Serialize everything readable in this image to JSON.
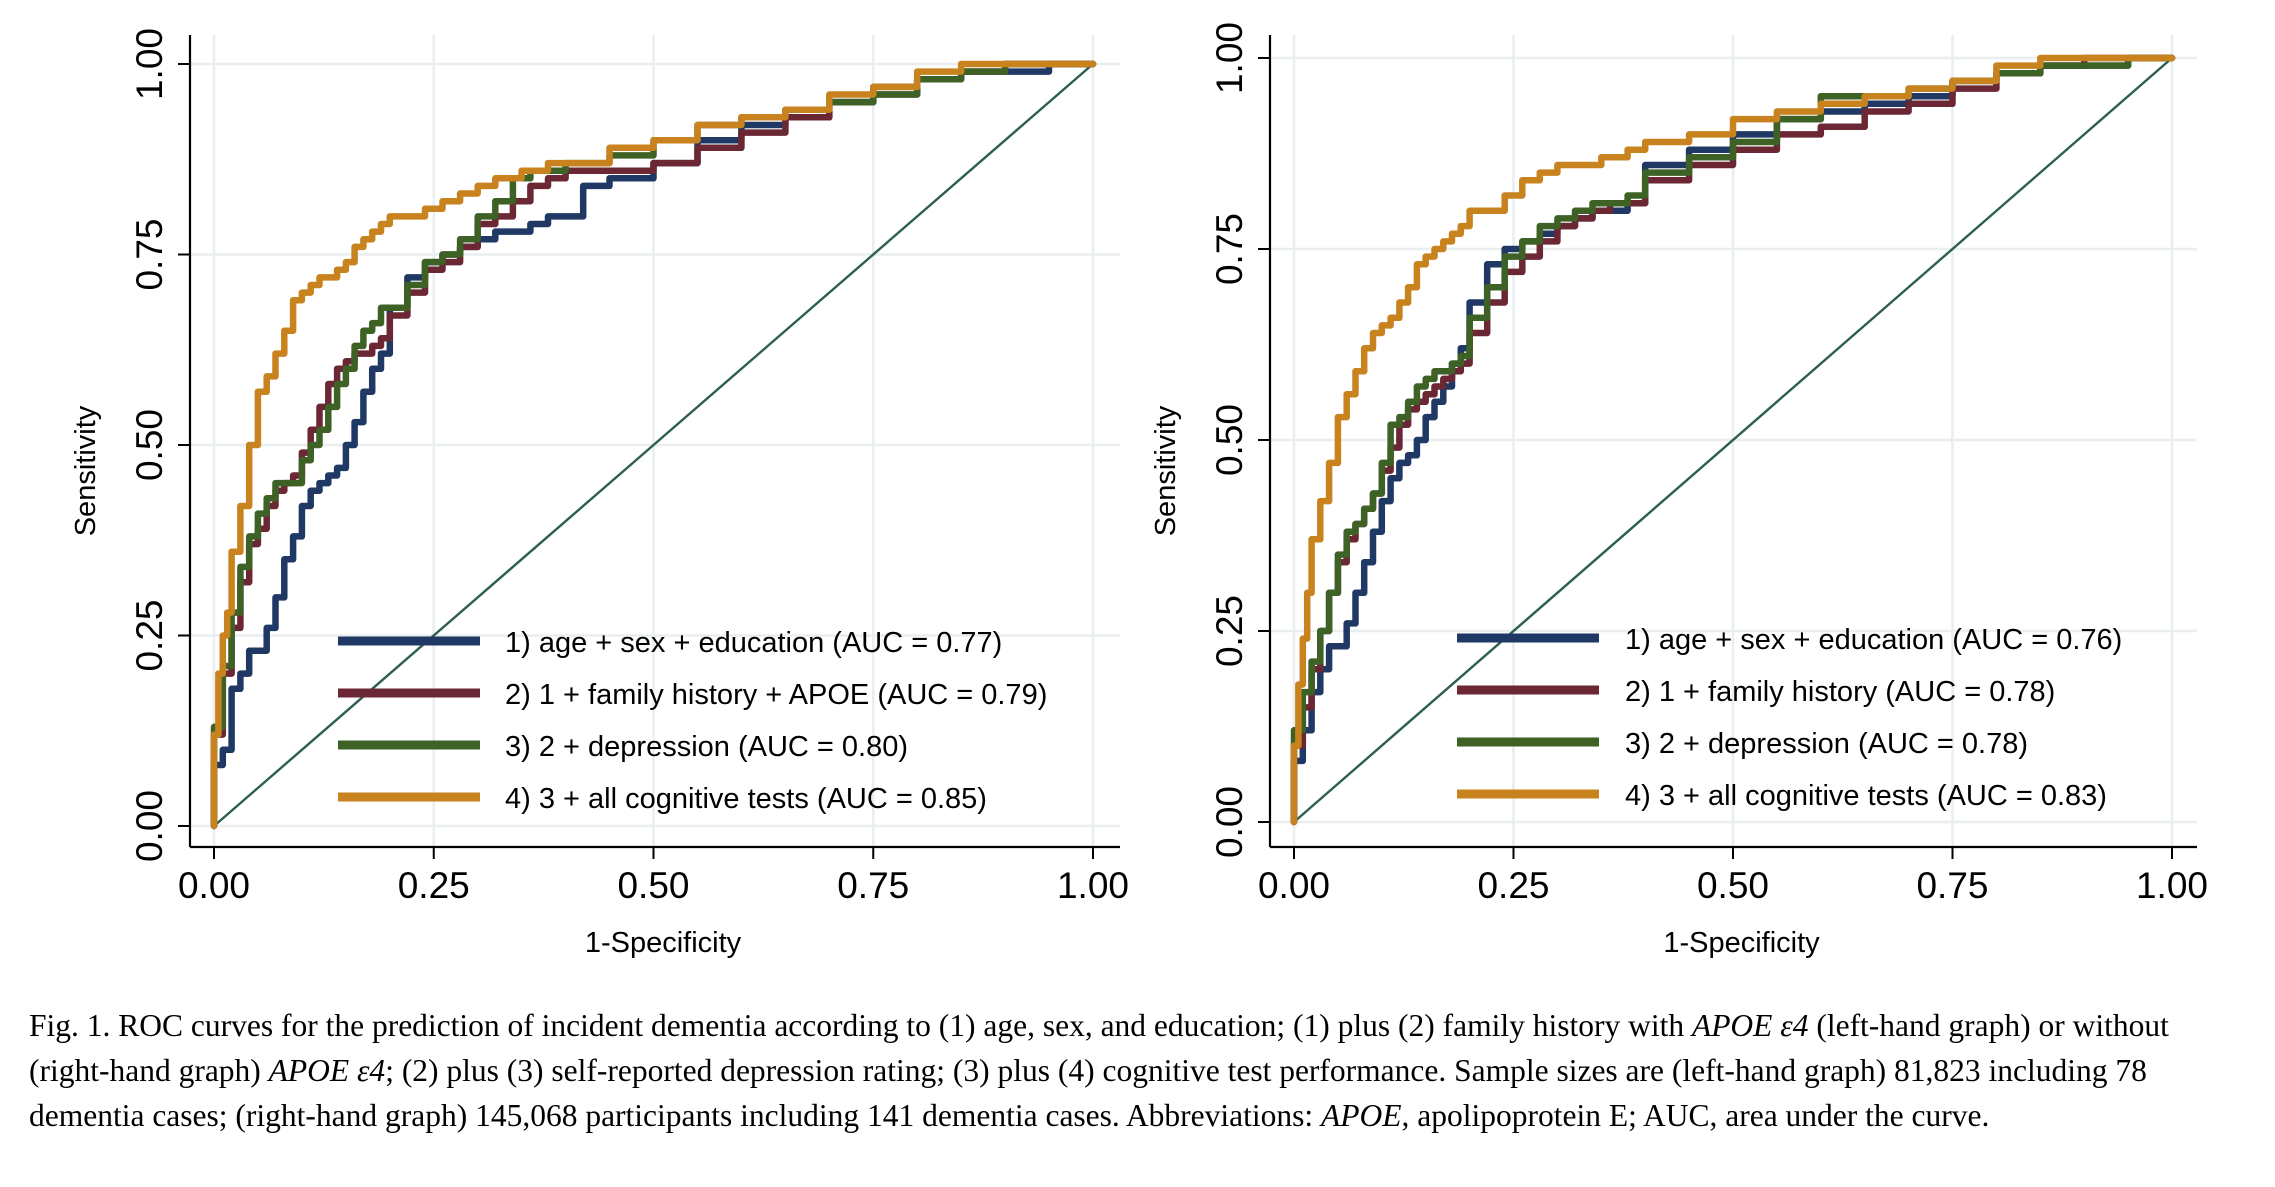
{
  "chart_data": [
    {
      "type": "line",
      "xlabel": "1-Specificity",
      "ylabel": "Sensitivity",
      "xlim": [
        0,
        1
      ],
      "ylim": [
        0,
        1
      ],
      "xticks": [
        "0.00",
        "0.25",
        "0.50",
        "0.75",
        "1.00"
      ],
      "yticks": [
        "0.00",
        "0.25",
        "0.50",
        "0.75",
        "1.00"
      ],
      "grid": true,
      "legend_position": "bottom-right",
      "reference_line": {
        "x": [
          0,
          1
        ],
        "y": [
          0,
          1
        ],
        "color": "#2d5f4f"
      },
      "series": [
        {
          "name": "1) age + sex + education (AUC = 0.77)",
          "color": "#1f3864",
          "x": [
            0,
            0.01,
            0.02,
            0.03,
            0.04,
            0.05,
            0.06,
            0.07,
            0.08,
            0.09,
            0.1,
            0.11,
            0.12,
            0.13,
            0.14,
            0.15,
            0.16,
            0.17,
            0.18,
            0.19,
            0.2,
            0.22,
            0.24,
            0.26,
            0.28,
            0.3,
            0.32,
            0.34,
            0.36,
            0.38,
            0.4,
            0.42,
            0.45,
            0.5,
            0.55,
            0.6,
            0.65,
            0.7,
            0.75,
            0.8,
            0.85,
            0.9,
            0.95,
            1.0
          ],
          "y": [
            0,
            0.08,
            0.1,
            0.18,
            0.2,
            0.23,
            0.23,
            0.26,
            0.3,
            0.35,
            0.38,
            0.42,
            0.44,
            0.45,
            0.46,
            0.47,
            0.5,
            0.53,
            0.57,
            0.6,
            0.62,
            0.68,
            0.72,
            0.74,
            0.75,
            0.76,
            0.77,
            0.78,
            0.78,
            0.79,
            0.8,
            0.8,
            0.84,
            0.85,
            0.87,
            0.9,
            0.92,
            0.93,
            0.95,
            0.97,
            0.98,
            0.99,
            0.99,
            1.0
          ]
        },
        {
          "name": "2) 1 + family history + APOE (AUC = 0.79)",
          "color": "#6b2734",
          "x": [
            0,
            0.01,
            0.02,
            0.03,
            0.04,
            0.05,
            0.06,
            0.07,
            0.08,
            0.09,
            0.1,
            0.11,
            0.12,
            0.13,
            0.14,
            0.15,
            0.16,
            0.17,
            0.18,
            0.19,
            0.2,
            0.22,
            0.24,
            0.26,
            0.28,
            0.3,
            0.32,
            0.34,
            0.36,
            0.38,
            0.4,
            0.45,
            0.5,
            0.55,
            0.6,
            0.65,
            0.7,
            0.75,
            0.8,
            0.85,
            0.9,
            0.95,
            1.0
          ],
          "y": [
            0,
            0.12,
            0.2,
            0.26,
            0.32,
            0.37,
            0.39,
            0.42,
            0.44,
            0.45,
            0.46,
            0.49,
            0.52,
            0.55,
            0.58,
            0.6,
            0.61,
            0.62,
            0.62,
            0.63,
            0.64,
            0.67,
            0.7,
            0.73,
            0.74,
            0.76,
            0.79,
            0.8,
            0.82,
            0.84,
            0.85,
            0.86,
            0.86,
            0.87,
            0.89,
            0.91,
            0.93,
            0.95,
            0.96,
            0.98,
            0.99,
            1.0,
            1.0
          ]
        },
        {
          "name": "3) 2 + depression (AUC = 0.80)",
          "color": "#3e6226",
          "x": [
            0,
            0.01,
            0.02,
            0.03,
            0.04,
            0.05,
            0.06,
            0.07,
            0.08,
            0.09,
            0.1,
            0.11,
            0.12,
            0.13,
            0.14,
            0.15,
            0.16,
            0.17,
            0.18,
            0.19,
            0.2,
            0.22,
            0.24,
            0.26,
            0.28,
            0.3,
            0.32,
            0.34,
            0.36,
            0.38,
            0.4,
            0.45,
            0.5,
            0.55,
            0.6,
            0.65,
            0.7,
            0.75,
            0.8,
            0.85,
            0.9,
            0.95,
            1.0
          ],
          "y": [
            0,
            0.13,
            0.21,
            0.28,
            0.34,
            0.38,
            0.41,
            0.43,
            0.45,
            0.45,
            0.45,
            0.48,
            0.5,
            0.52,
            0.55,
            0.58,
            0.6,
            0.63,
            0.65,
            0.66,
            0.68,
            0.68,
            0.71,
            0.74,
            0.75,
            0.77,
            0.8,
            0.82,
            0.85,
            0.86,
            0.86,
            0.87,
            0.88,
            0.9,
            0.92,
            0.93,
            0.94,
            0.95,
            0.96,
            0.98,
            0.99,
            1.0,
            1.0
          ]
        },
        {
          "name": "4) 3 + all cognitive tests (AUC = 0.85)",
          "color": "#c8821e",
          "x": [
            0,
            0.005,
            0.01,
            0.015,
            0.02,
            0.03,
            0.04,
            0.05,
            0.06,
            0.07,
            0.08,
            0.09,
            0.1,
            0.11,
            0.12,
            0.13,
            0.14,
            0.15,
            0.16,
            0.17,
            0.18,
            0.19,
            0.2,
            0.22,
            0.24,
            0.26,
            0.28,
            0.3,
            0.32,
            0.35,
            0.38,
            0.4,
            0.45,
            0.5,
            0.55,
            0.6,
            0.65,
            0.7,
            0.75,
            0.8,
            0.85,
            0.9,
            0.95,
            1.0
          ],
          "y": [
            0,
            0.12,
            0.2,
            0.25,
            0.28,
            0.36,
            0.42,
            0.5,
            0.57,
            0.59,
            0.62,
            0.65,
            0.69,
            0.7,
            0.71,
            0.72,
            0.72,
            0.73,
            0.74,
            0.76,
            0.77,
            0.78,
            0.79,
            0.8,
            0.8,
            0.81,
            0.82,
            0.83,
            0.84,
            0.85,
            0.86,
            0.87,
            0.87,
            0.89,
            0.9,
            0.92,
            0.93,
            0.94,
            0.96,
            0.97,
            0.99,
            1.0,
            1.0,
            1.0
          ]
        }
      ]
    },
    {
      "type": "line",
      "xlabel": "1-Specificity",
      "ylabel": "Sensitivity",
      "xlim": [
        0,
        1
      ],
      "ylim": [
        0,
        1
      ],
      "xticks": [
        "0.00",
        "0.25",
        "0.50",
        "0.75",
        "1.00"
      ],
      "yticks": [
        "0.00",
        "0.25",
        "0.50",
        "0.75",
        "1.00"
      ],
      "grid": true,
      "legend_position": "bottom-right",
      "reference_line": {
        "x": [
          0,
          1
        ],
        "y": [
          0,
          1
        ],
        "color": "#2d5f4f"
      },
      "series": [
        {
          "name": "1) age + sex + education (AUC = 0.76)",
          "color": "#1f3864",
          "x": [
            0,
            0.01,
            0.02,
            0.03,
            0.04,
            0.05,
            0.06,
            0.07,
            0.08,
            0.09,
            0.1,
            0.11,
            0.12,
            0.13,
            0.14,
            0.15,
            0.16,
            0.17,
            0.18,
            0.19,
            0.2,
            0.22,
            0.24,
            0.26,
            0.28,
            0.3,
            0.32,
            0.34,
            0.36,
            0.38,
            0.4,
            0.45,
            0.5,
            0.55,
            0.6,
            0.65,
            0.7,
            0.75,
            0.8,
            0.85,
            0.9,
            0.95,
            1.0
          ],
          "y": [
            0,
            0.08,
            0.12,
            0.17,
            0.2,
            0.23,
            0.23,
            0.26,
            0.3,
            0.34,
            0.38,
            0.42,
            0.45,
            0.47,
            0.48,
            0.5,
            0.53,
            0.55,
            0.57,
            0.6,
            0.62,
            0.68,
            0.73,
            0.75,
            0.76,
            0.77,
            0.78,
            0.79,
            0.8,
            0.8,
            0.81,
            0.86,
            0.88,
            0.9,
            0.92,
            0.93,
            0.94,
            0.95,
            0.97,
            0.98,
            0.99,
            0.99,
            1.0
          ]
        },
        {
          "name": "2) 1 + family history (AUC = 0.78)",
          "color": "#6b2734",
          "x": [
            0,
            0.01,
            0.02,
            0.03,
            0.04,
            0.05,
            0.06,
            0.07,
            0.08,
            0.09,
            0.1,
            0.11,
            0.12,
            0.13,
            0.14,
            0.15,
            0.16,
            0.17,
            0.18,
            0.19,
            0.2,
            0.22,
            0.24,
            0.26,
            0.28,
            0.3,
            0.32,
            0.34,
            0.36,
            0.38,
            0.4,
            0.45,
            0.5,
            0.55,
            0.6,
            0.65,
            0.7,
            0.75,
            0.8,
            0.85,
            0.9,
            0.95,
            1.0
          ],
          "y": [
            0,
            0.1,
            0.15,
            0.2,
            0.25,
            0.3,
            0.34,
            0.37,
            0.39,
            0.41,
            0.43,
            0.46,
            0.49,
            0.52,
            0.54,
            0.55,
            0.56,
            0.57,
            0.58,
            0.59,
            0.6,
            0.64,
            0.68,
            0.72,
            0.74,
            0.76,
            0.78,
            0.79,
            0.8,
            0.81,
            0.81,
            0.84,
            0.86,
            0.88,
            0.9,
            0.91,
            0.93,
            0.94,
            0.96,
            0.98,
            0.99,
            1.0,
            1.0
          ]
        },
        {
          "name": "3) 2 + depression (AUC = 0.78)",
          "color": "#3e6226",
          "x": [
            0,
            0.01,
            0.02,
            0.03,
            0.04,
            0.05,
            0.06,
            0.07,
            0.08,
            0.09,
            0.1,
            0.11,
            0.12,
            0.13,
            0.14,
            0.15,
            0.16,
            0.17,
            0.18,
            0.19,
            0.2,
            0.22,
            0.24,
            0.26,
            0.28,
            0.3,
            0.32,
            0.34,
            0.36,
            0.38,
            0.4,
            0.45,
            0.5,
            0.55,
            0.6,
            0.65,
            0.7,
            0.75,
            0.8,
            0.85,
            0.9,
            0.95,
            1.0
          ],
          "y": [
            0,
            0.12,
            0.17,
            0.21,
            0.25,
            0.3,
            0.35,
            0.38,
            0.39,
            0.41,
            0.43,
            0.47,
            0.52,
            0.53,
            0.55,
            0.57,
            0.58,
            0.59,
            0.59,
            0.6,
            0.61,
            0.66,
            0.7,
            0.74,
            0.76,
            0.78,
            0.79,
            0.8,
            0.81,
            0.81,
            0.82,
            0.85,
            0.87,
            0.89,
            0.92,
            0.95,
            0.95,
            0.96,
            0.97,
            0.98,
            0.99,
            0.99,
            1.0
          ]
        },
        {
          "name": "4) 3 + all cognitive tests (AUC = 0.83)",
          "color": "#c8821e",
          "x": [
            0,
            0.005,
            0.01,
            0.015,
            0.02,
            0.03,
            0.04,
            0.05,
            0.06,
            0.07,
            0.08,
            0.09,
            0.1,
            0.11,
            0.12,
            0.13,
            0.14,
            0.15,
            0.16,
            0.17,
            0.18,
            0.19,
            0.2,
            0.22,
            0.24,
            0.26,
            0.28,
            0.3,
            0.32,
            0.35,
            0.38,
            0.4,
            0.45,
            0.5,
            0.55,
            0.6,
            0.65,
            0.7,
            0.75,
            0.8,
            0.85,
            0.9,
            0.95,
            1.0
          ],
          "y": [
            0,
            0.1,
            0.18,
            0.24,
            0.3,
            0.37,
            0.42,
            0.47,
            0.53,
            0.56,
            0.59,
            0.62,
            0.64,
            0.65,
            0.66,
            0.68,
            0.7,
            0.73,
            0.74,
            0.75,
            0.76,
            0.77,
            0.78,
            0.8,
            0.8,
            0.82,
            0.84,
            0.85,
            0.86,
            0.86,
            0.87,
            0.88,
            0.89,
            0.9,
            0.92,
            0.93,
            0.94,
            0.95,
            0.96,
            0.97,
            0.99,
            1.0,
            1.0,
            1.0
          ]
        }
      ]
    }
  ],
  "caption": {
    "t1": "Fig. 1.  ROC curves for the prediction of incident dementia according to (1) age, sex, and education; (1) plus (2) family history with ",
    "apoe1": "APOE ε4",
    "t2": " (left-hand graph) or without (right-hand graph) ",
    "apoe2": "APOE ε4",
    "t3": "; (2) plus (3) self-reported depression rating; (3) plus (4) cognitive test performance. Sample sizes are (left-hand graph) 81,823 including 78 dementia cases; (right-hand graph) 145,068 participants including 141 dementia cases. Abbreviations: ",
    "apoe3": "APOE",
    "t4": ", apolipoprotein E; AUC, area under the curve."
  }
}
